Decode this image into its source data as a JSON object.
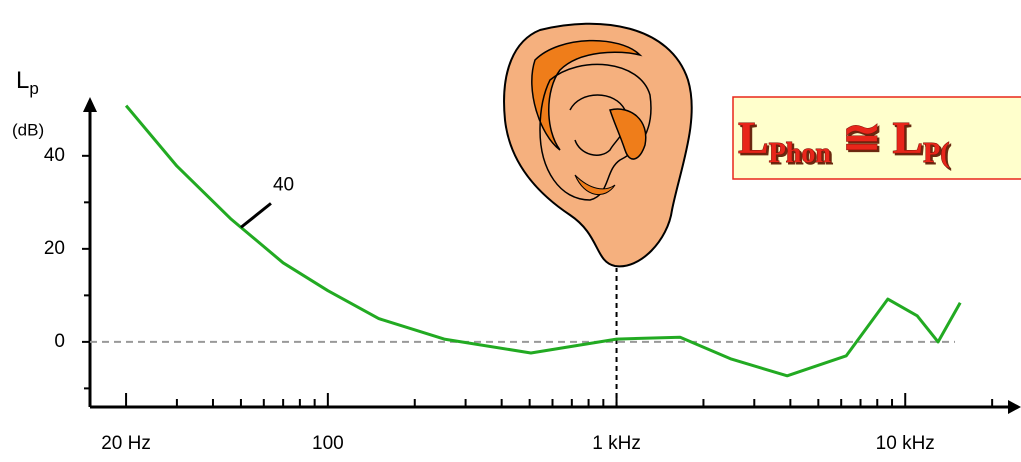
{
  "chart_data": {
    "type": "line",
    "ylabel": {
      "symbol": "L",
      "subscript": "p",
      "unit": "(dB)"
    },
    "x": [
      20,
      30,
      46,
      70,
      100,
      150,
      253,
      505,
      1000,
      1660,
      2500,
      3900,
      6250,
      8700,
      11000,
      13000,
      15500
    ],
    "values": [
      50.8,
      37.8,
      26.5,
      17,
      11,
      5,
      0.6,
      -2.4,
      0.6,
      1,
      -3.7,
      -7.3,
      -3,
      9.2,
      5.6,
      0,
      8.4
    ],
    "color": "#22aa22",
    "xlog": true,
    "xlim": [
      15,
      24000
    ],
    "ylim": [
      -14,
      52
    ],
    "xticks": [
      {
        "value": 20,
        "label": "20 Hz"
      },
      100,
      {
        "value": 1000,
        "label": "1 kHz"
      },
      {
        "value": 10000,
        "label": "10 kHz"
      }
    ],
    "xminorticks": [
      30,
      40,
      50,
      60,
      70,
      80,
      90,
      200,
      300,
      400,
      500,
      600,
      700,
      800,
      900,
      2000,
      3000,
      4000,
      5000,
      6000,
      7000,
      8000,
      9000,
      20000
    ],
    "yticks": [
      40,
      20,
      0
    ],
    "yminorticks": [
      30,
      10,
      -10
    ],
    "reference_line": 0,
    "marker_x": 1000,
    "annotation": {
      "text": "40",
      "x": 50
    },
    "formula": {
      "main": "L",
      "sub": "Phon",
      "op": " ≅ L",
      "sub2": "P("
    }
  }
}
